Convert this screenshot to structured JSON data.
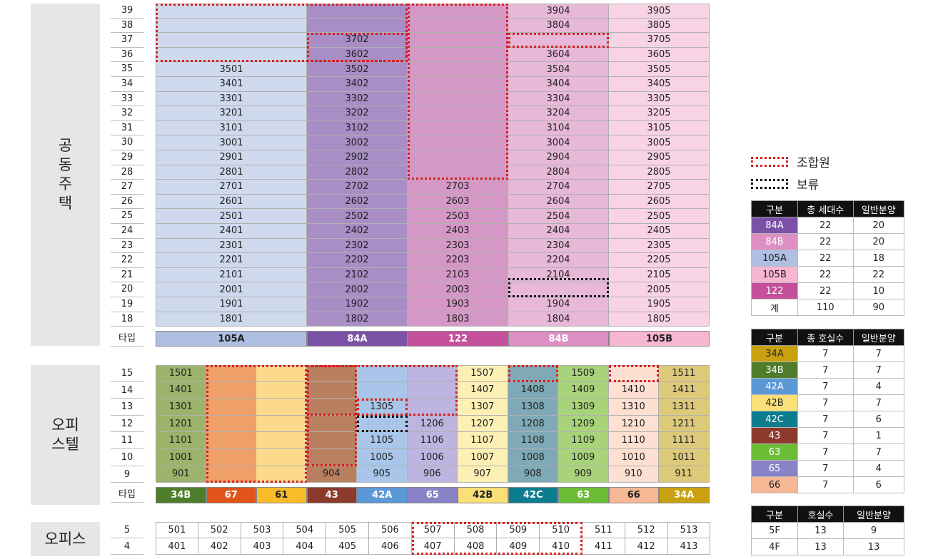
{
  "sections": {
    "apartment": "공동\n주택",
    "officetel": "오피\n스텔",
    "office": "오피스"
  },
  "type_label": "타입",
  "apartment": {
    "columns": [
      {
        "type": "105A",
        "color": "#cfd9ee",
        "head": "#aebfe2"
      },
      {
        "type": "84A",
        "color": "#a98dc5",
        "head": "#7b52a6"
      },
      {
        "type": "122",
        "color": "#d598c6",
        "head": "#c4509c"
      },
      {
        "type": "84B",
        "color": "#e7b8d8",
        "head": "#dd8fc3"
      },
      {
        "type": "105B",
        "color": "#f8d3e5",
        "head": "#f7b6d2"
      }
    ],
    "floors": [
      "39",
      "38",
      "37",
      "36",
      "35",
      "34",
      "33",
      "32",
      "31",
      "30",
      "29",
      "28",
      "27",
      "26",
      "25",
      "24",
      "23",
      "22",
      "21",
      "20",
      "19",
      "18"
    ],
    "rows": [
      [
        "",
        "",
        "",
        "3904",
        "3905"
      ],
      [
        "",
        "",
        "",
        "3804",
        "3805"
      ],
      [
        "",
        "3702",
        "",
        "",
        "3705"
      ],
      [
        "",
        "3602",
        "",
        "3604",
        "3605"
      ],
      [
        "3501",
        "3502",
        "",
        "3504",
        "3505"
      ],
      [
        "3401",
        "3402",
        "",
        "3404",
        "3405"
      ],
      [
        "3301",
        "3302",
        "",
        "3304",
        "3305"
      ],
      [
        "3201",
        "3202",
        "",
        "3204",
        "3205"
      ],
      [
        "3101",
        "3102",
        "",
        "3104",
        "3105"
      ],
      [
        "3001",
        "3002",
        "",
        "3004",
        "3005"
      ],
      [
        "2901",
        "2902",
        "",
        "2904",
        "2905"
      ],
      [
        "2801",
        "2802",
        "",
        "2804",
        "2805"
      ],
      [
        "2701",
        "2702",
        "2703",
        "2704",
        "2705"
      ],
      [
        "2601",
        "2602",
        "2603",
        "2604",
        "2605"
      ],
      [
        "2501",
        "2502",
        "2503",
        "2504",
        "2505"
      ],
      [
        "2401",
        "2402",
        "2403",
        "2404",
        "2405"
      ],
      [
        "2301",
        "2302",
        "2303",
        "2304",
        "2305"
      ],
      [
        "2201",
        "2202",
        "2203",
        "2204",
        "2205"
      ],
      [
        "2101",
        "2102",
        "2103",
        "2104",
        "2105"
      ],
      [
        "2001",
        "2002",
        "2003",
        "",
        "2005"
      ],
      [
        "1901",
        "1902",
        "1903",
        "1904",
        "1905"
      ],
      [
        "1801",
        "1802",
        "1803",
        "1804",
        "1805"
      ]
    ]
  },
  "officetel": {
    "columns": [
      {
        "type": "34B",
        "color": "#9bb36a",
        "head": "#4f7d2b",
        "headText": "#fff"
      },
      {
        "type": "67",
        "color": "#ef9f68",
        "head": "#e0541a",
        "headText": "#fff"
      },
      {
        "type": "61",
        "color": "#fdd98c",
        "head": "#f8bc2a",
        "headText": "#222"
      },
      {
        "type": "43",
        "color": "#b9805f",
        "head": "#8c3a2c",
        "headText": "#fff"
      },
      {
        "type": "42A",
        "color": "#a9c6ea",
        "head": "#5b98d6",
        "headText": "#fff"
      },
      {
        "type": "65",
        "color": "#bdb5df",
        "head": "#8a82c6",
        "headText": "#fff"
      },
      {
        "type": "42B",
        "color": "#fdf0b4",
        "head": "#fbe077",
        "headText": "#222"
      },
      {
        "type": "42C",
        "color": "#7fa9b6",
        "head": "#0d7c8e",
        "headText": "#fff"
      },
      {
        "type": "63",
        "color": "#a8d37a",
        "head": "#6cbd36",
        "headText": "#fff"
      },
      {
        "type": "66",
        "color": "#fde0d2",
        "head": "#f7b896",
        "headText": "#222"
      },
      {
        "type": "34A",
        "color": "#ddc97a",
        "head": "#c9a10e",
        "headText": "#fff"
      }
    ],
    "floors": [
      "15",
      "14",
      "13",
      "12",
      "11",
      "10",
      "9"
    ],
    "rows": [
      [
        "1501",
        "",
        "",
        "",
        "",
        "",
        "1507",
        "",
        "1509",
        "",
        "1511"
      ],
      [
        "1401",
        "",
        "",
        "",
        "",
        "",
        "1407",
        "1408",
        "1409",
        "1410",
        "1411"
      ],
      [
        "1301",
        "",
        "",
        "",
        "1305",
        "",
        "1307",
        "1308",
        "1309",
        "1310",
        "1311"
      ],
      [
        "1201",
        "",
        "",
        "",
        "",
        "1206",
        "1207",
        "1208",
        "1209",
        "1210",
        "1211"
      ],
      [
        "1101",
        "",
        "",
        "",
        "1105",
        "1106",
        "1107",
        "1108",
        "1109",
        "1110",
        "1111"
      ],
      [
        "1001",
        "",
        "",
        "",
        "1005",
        "1006",
        "1007",
        "1008",
        "1009",
        "1010",
        "1011"
      ],
      [
        "901",
        "",
        "",
        "904",
        "905",
        "906",
        "907",
        "908",
        "909",
        "910",
        "911"
      ]
    ]
  },
  "office": {
    "floors": [
      "5",
      "4"
    ],
    "rows": [
      [
        "501",
        "502",
        "503",
        "504",
        "505",
        "506",
        "507",
        "508",
        "509",
        "510",
        "511",
        "512",
        "513"
      ],
      [
        "401",
        "402",
        "403",
        "404",
        "405",
        "406",
        "407",
        "408",
        "409",
        "410",
        "411",
        "412",
        "413"
      ]
    ]
  },
  "legend": {
    "union": "조합원",
    "hold": "보류",
    "apt_table": {
      "headers": [
        "구분",
        "총 세대수",
        "일반분양"
      ],
      "rows": [
        {
          "type": "84A",
          "total": "22",
          "general": "20",
          "color": "#7b52a6",
          "text": "#fff"
        },
        {
          "type": "84B",
          "total": "22",
          "general": "20",
          "color": "#dd8fc3",
          "text": "#fff"
        },
        {
          "type": "105A",
          "total": "22",
          "general": "18",
          "color": "#aebfe2",
          "text": "#222"
        },
        {
          "type": "105B",
          "total": "22",
          "general": "22",
          "color": "#f7b6d2",
          "text": "#222"
        },
        {
          "type": "122",
          "total": "22",
          "general": "10",
          "color": "#c4509c",
          "text": "#fff"
        },
        {
          "type": "계",
          "total": "110",
          "general": "90",
          "color": "#ffffff",
          "text": "#222"
        }
      ]
    },
    "ot_table": {
      "headers": [
        "구분",
        "총 호실수",
        "일반분양"
      ],
      "rows": [
        {
          "type": "34A",
          "total": "7",
          "general": "7",
          "color": "#c9a10e",
          "text": "#222"
        },
        {
          "type": "34B",
          "total": "7",
          "general": "7",
          "color": "#4f7d2b",
          "text": "#fff"
        },
        {
          "type": "42A",
          "total": "7",
          "general": "4",
          "color": "#5b98d6",
          "text": "#fff"
        },
        {
          "type": "42B",
          "total": "7",
          "general": "7",
          "color": "#fbe077",
          "text": "#222"
        },
        {
          "type": "42C",
          "total": "7",
          "general": "6",
          "color": "#0d7c8e",
          "text": "#fff"
        },
        {
          "type": "43",
          "total": "7",
          "general": "1",
          "color": "#8c3a2c",
          "text": "#fff"
        },
        {
          "type": "63",
          "total": "7",
          "general": "7",
          "color": "#6cbd36",
          "text": "#fff"
        },
        {
          "type": "65",
          "total": "7",
          "general": "4",
          "color": "#8a82c6",
          "text": "#fff"
        },
        {
          "type": "66",
          "total": "7",
          "general": "6",
          "color": "#f7b896",
          "text": "#222"
        }
      ]
    },
    "office_table": {
      "headers": [
        "구분",
        "호실수",
        "일반분양"
      ],
      "rows": [
        {
          "type": "5F",
          "total": "13",
          "general": "9"
        },
        {
          "type": "4F",
          "total": "13",
          "general": "13"
        }
      ]
    }
  }
}
